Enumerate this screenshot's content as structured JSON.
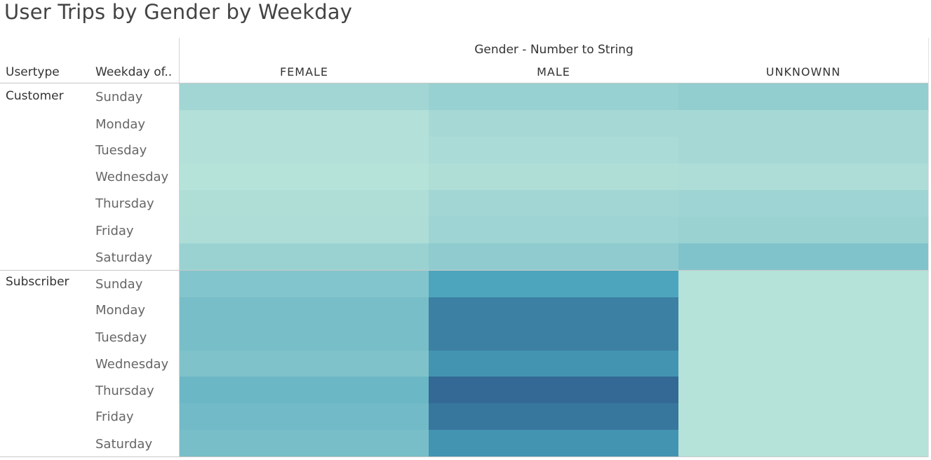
{
  "title": "User Trips by Gender by Weekday",
  "chart_data": {
    "type": "heatmap",
    "title": "User Trips by Gender by Weekday",
    "column_field_label": "Gender - Number to String",
    "row_field_labels": [
      "Usertype",
      "Weekday of.."
    ],
    "columns": [
      "FEMALE",
      "MALE",
      "UNKNOWNN"
    ],
    "groups": [
      {
        "usertype": "Customer",
        "rows": [
          {
            "weekday": "Sunday",
            "values": [
              0.14,
              0.19,
              0.22
            ]
          },
          {
            "weekday": "Monday",
            "values": [
              0.05,
              0.12,
              0.12
            ]
          },
          {
            "weekday": "Tuesday",
            "values": [
              0.05,
              0.1,
              0.12
            ]
          },
          {
            "weekday": "Wednesday",
            "values": [
              0.04,
              0.07,
              0.08
            ]
          },
          {
            "weekday": "Thursday",
            "values": [
              0.07,
              0.14,
              0.16
            ]
          },
          {
            "weekday": "Friday",
            "values": [
              0.08,
              0.16,
              0.18
            ]
          },
          {
            "weekday": "Saturday",
            "values": [
              0.18,
              0.24,
              0.31
            ]
          }
        ]
      },
      {
        "usertype": "Subscriber",
        "rows": [
          {
            "weekday": "Sunday",
            "values": [
              0.3,
              0.58,
              0.04
            ]
          },
          {
            "weekday": "Monday",
            "values": [
              0.36,
              0.78,
              0.04
            ]
          },
          {
            "weekday": "Tuesday",
            "values": [
              0.36,
              0.78,
              0.04
            ]
          },
          {
            "weekday": "Wednesday",
            "values": [
              0.32,
              0.68,
              0.04
            ]
          },
          {
            "weekday": "Thursday",
            "values": [
              0.42,
              0.9,
              0.04
            ]
          },
          {
            "weekday": "Friday",
            "values": [
              0.39,
              0.83,
              0.04
            ]
          },
          {
            "weekday": "Saturday",
            "values": [
              0.36,
              0.68,
              0.04
            ]
          }
        ]
      }
    ],
    "color_scale": {
      "low": "#bde6db",
      "mid": "#49a3bc",
      "high": "#2b5686"
    },
    "grid": false,
    "legend": "none"
  }
}
